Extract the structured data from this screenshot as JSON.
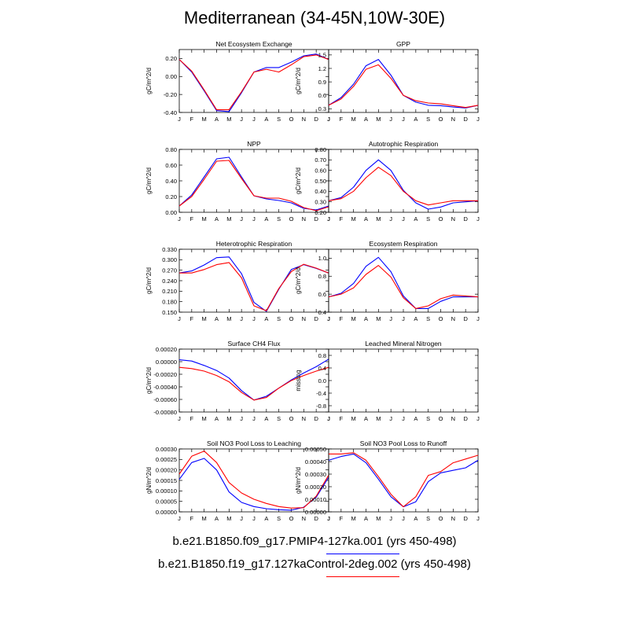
{
  "title": "Mediterranean (34-45N,10W-30E)",
  "colors": {
    "series1": "#0000ff",
    "series2": "#ff0000"
  },
  "legend": [
    {
      "label": "b.e21.B1850.f09_g17.PMIP4-127ka.001 (yrs 450-498)",
      "color": "#0000ff"
    },
    {
      "label": "b.e21.B1850.f19_g17.127kaControl-2deg.002 (yrs 450-498)",
      "color": "#ff0000"
    }
  ],
  "chart_data": [
    {
      "type": "line",
      "title": "Net Ecosystem Exchange",
      "ylabel": "gC/m^2/d",
      "categories": [
        "J",
        "F",
        "M",
        "A",
        "M",
        "J",
        "J",
        "A",
        "S",
        "O",
        "N",
        "D",
        "J"
      ],
      "ylim": [
        -0.4,
        0.3
      ],
      "yticks": [
        "0.20",
        "0.00",
        "-0.20",
        "-0.40"
      ],
      "ytick_values": [
        0.2,
        0.0,
        -0.2,
        -0.4
      ],
      "series": [
        {
          "values": [
            0.19,
            0.05,
            -0.16,
            -0.38,
            -0.39,
            -0.18,
            0.05,
            0.1,
            0.1,
            0.16,
            0.23,
            0.25,
            0.19
          ]
        },
        {
          "values": [
            0.19,
            0.06,
            -0.15,
            -0.37,
            -0.37,
            -0.17,
            0.05,
            0.08,
            0.05,
            0.13,
            0.22,
            0.24,
            0.19
          ]
        }
      ]
    },
    {
      "type": "line",
      "title": "GPP",
      "ylabel": "gC/m^2/d",
      "categories": [
        "J",
        "F",
        "M",
        "A",
        "M",
        "J",
        "J",
        "A",
        "S",
        "O",
        "N",
        "D",
        "J"
      ],
      "ylim": [
        0.22,
        1.62
      ],
      "yticks": [
        "1.5",
        "1.2",
        "0.9",
        "0.6",
        "0.3"
      ],
      "ytick_values": [
        1.5,
        1.2,
        0.9,
        0.6,
        0.3
      ],
      "series": [
        {
          "values": [
            0.38,
            0.55,
            0.85,
            1.26,
            1.4,
            1.05,
            0.6,
            0.45,
            0.38,
            0.37,
            0.34,
            0.32,
            0.38
          ]
        },
        {
          "values": [
            0.38,
            0.52,
            0.8,
            1.18,
            1.28,
            0.98,
            0.6,
            0.48,
            0.43,
            0.41,
            0.37,
            0.33,
            0.38
          ]
        }
      ]
    },
    {
      "type": "line",
      "title": "NPP",
      "ylabel": "gC/m^2/d",
      "categories": [
        "J",
        "F",
        "M",
        "A",
        "M",
        "J",
        "J",
        "A",
        "S",
        "O",
        "N",
        "D",
        "J"
      ],
      "ylim": [
        0.0,
        0.8
      ],
      "yticks": [
        "0.80",
        "0.60",
        "0.40",
        "0.20",
        "0.00"
      ],
      "ytick_values": [
        0.8,
        0.6,
        0.4,
        0.2,
        0.0
      ],
      "series": [
        {
          "values": [
            0.08,
            0.22,
            0.45,
            0.68,
            0.7,
            0.45,
            0.21,
            0.17,
            0.15,
            0.12,
            0.05,
            0.03,
            0.08
          ]
        },
        {
          "values": [
            0.08,
            0.2,
            0.42,
            0.65,
            0.66,
            0.43,
            0.21,
            0.18,
            0.18,
            0.14,
            0.06,
            0.02,
            0.07
          ]
        }
      ]
    },
    {
      "type": "line",
      "title": "Autotrophic Respiration",
      "ylabel": "gC/m^2/d",
      "categories": [
        "J",
        "F",
        "M",
        "A",
        "M",
        "J",
        "J",
        "A",
        "S",
        "O",
        "N",
        "D",
        "J"
      ],
      "ylim": [
        0.2,
        0.8
      ],
      "yticks": [
        "0.80",
        "0.70",
        "0.60",
        "0.50",
        "0.40",
        "0.30",
        "0.20"
      ],
      "ytick_values": [
        0.8,
        0.7,
        0.6,
        0.5,
        0.4,
        0.3,
        0.2
      ],
      "series": [
        {
          "values": [
            0.31,
            0.34,
            0.44,
            0.6,
            0.7,
            0.6,
            0.41,
            0.29,
            0.23,
            0.25,
            0.29,
            0.3,
            0.31
          ]
        },
        {
          "values": [
            0.31,
            0.33,
            0.4,
            0.53,
            0.63,
            0.55,
            0.4,
            0.31,
            0.27,
            0.29,
            0.31,
            0.31,
            0.31
          ]
        }
      ]
    },
    {
      "type": "line",
      "title": "Heterotrophic Respiration",
      "ylabel": "gC/m^2/d",
      "categories": [
        "J",
        "F",
        "M",
        "A",
        "M",
        "J",
        "J",
        "A",
        "S",
        "O",
        "N",
        "D",
        "J"
      ],
      "ylim": [
        0.15,
        0.33
      ],
      "yticks": [
        "0.330",
        "0.300",
        "0.270",
        "0.240",
        "0.210",
        "0.180",
        "0.150"
      ],
      "ytick_values": [
        0.33,
        0.3,
        0.27,
        0.24,
        0.21,
        0.18,
        0.15
      ],
      "series": [
        {
          "values": [
            0.262,
            0.268,
            0.285,
            0.306,
            0.308,
            0.26,
            0.178,
            0.152,
            0.216,
            0.272,
            0.286,
            0.275,
            0.262
          ]
        },
        {
          "values": [
            0.262,
            0.262,
            0.272,
            0.286,
            0.292,
            0.248,
            0.168,
            0.154,
            0.218,
            0.266,
            0.287,
            0.276,
            0.262
          ]
        }
      ]
    },
    {
      "type": "line",
      "title": "Ecosystem Respiration",
      "ylabel": "gC/m^2/d",
      "categories": [
        "J",
        "F",
        "M",
        "A",
        "M",
        "J",
        "J",
        "A",
        "S",
        "O",
        "N",
        "D",
        "J"
      ],
      "ylim": [
        0.4,
        1.1
      ],
      "yticks": [
        "1.0",
        "0.8",
        "0.6",
        "0.4"
      ],
      "ytick_values": [
        1.0,
        0.8,
        0.6,
        0.4
      ],
      "series": [
        {
          "values": [
            0.57,
            0.61,
            0.72,
            0.91,
            1.01,
            0.85,
            0.58,
            0.44,
            0.44,
            0.52,
            0.57,
            0.57,
            0.57
          ]
        },
        {
          "values": [
            0.57,
            0.6,
            0.67,
            0.82,
            0.92,
            0.79,
            0.56,
            0.44,
            0.47,
            0.55,
            0.59,
            0.58,
            0.57
          ]
        }
      ]
    },
    {
      "type": "line",
      "title": "Surface CH4 Flux",
      "ylabel": "gC/m^2/d",
      "categories": [
        "J",
        "F",
        "M",
        "A",
        "M",
        "J",
        "J",
        "A",
        "S",
        "O",
        "N",
        "D",
        "J"
      ],
      "ylim": [
        -0.0008,
        0.0002
      ],
      "yticks": [
        "0.00020",
        "0.00000",
        "-0.00020",
        "-0.00040",
        "-0.00060",
        "-0.00080"
      ],
      "ytick_values": [
        0.0002,
        0.0,
        -0.0002,
        -0.0004,
        -0.0006,
        -0.0008
      ],
      "series": [
        {
          "values": [
            3e-05,
            1e-05,
            -6e-05,
            -0.00014,
            -0.00026,
            -0.00046,
            -0.00061,
            -0.00055,
            -0.00042,
            -0.00029,
            -0.00018,
            -8e-05,
            4e-05
          ]
        },
        {
          "values": [
            -9e-05,
            -0.00011,
            -0.00015,
            -0.00022,
            -0.00032,
            -0.00049,
            -0.00061,
            -0.00057,
            -0.00042,
            -0.0003,
            -0.00022,
            -0.00015,
            -9e-05
          ]
        }
      ]
    },
    {
      "type": "line",
      "title": "Leached Mineral Nitrogen",
      "ylabel": "missing",
      "categories": [
        "J",
        "F",
        "M",
        "A",
        "M",
        "J",
        "J",
        "A",
        "S",
        "O",
        "N",
        "D",
        "J"
      ],
      "ylim": [
        -1.0,
        1.0
      ],
      "yticks": [
        "0.8",
        "0.4",
        "0.0",
        "-0.4",
        "-0.8"
      ],
      "ytick_values": [
        0.8,
        0.4,
        0.0,
        -0.4,
        -0.8
      ],
      "series": []
    },
    {
      "type": "line",
      "title": "Soil NO3 Pool Loss to Leaching",
      "ylabel": "gN/m^2/d",
      "categories": [
        "J",
        "F",
        "M",
        "A",
        "M",
        "J",
        "J",
        "A",
        "S",
        "O",
        "N",
        "D",
        "J"
      ],
      "ylim": [
        0.0,
        0.0003
      ],
      "yticks": [
        "0.00030",
        "0.00025",
        "0.00020",
        "0.00015",
        "0.00010",
        "0.00005",
        "0.00000"
      ],
      "ytick_values": [
        0.0003,
        0.00025,
        0.0002,
        0.00015,
        0.0001,
        5e-05,
        0.0
      ],
      "series": [
        {
          "values": [
            0.000155,
            0.000235,
            0.000255,
            0.0002,
            9.5e-05,
            4.5e-05,
            2.5e-05,
            1.5e-05,
            1e-05,
            8e-06,
            2.2e-05,
            7e-05,
            0.000165
          ]
        },
        {
          "values": [
            0.00018,
            0.000265,
            0.00029,
            0.000235,
            0.00014,
            9e-05,
            6e-05,
            4e-05,
            2.5e-05,
            1.8e-05,
            2e-05,
            7.5e-05,
            0.000175
          ]
        }
      ]
    },
    {
      "type": "line",
      "title": "Soil NO3 Pool Loss to Runoff",
      "ylabel": "gN/m^2/d",
      "categories": [
        "J",
        "F",
        "M",
        "A",
        "M",
        "J",
        "J",
        "A",
        "S",
        "O",
        "N",
        "D",
        "J"
      ],
      "ylim": [
        0.0,
        0.0005
      ],
      "yticks": [
        "0.00050",
        "0.00040",
        "0.00030",
        "0.00020",
        "0.00010",
        "0.00000"
      ],
      "ytick_values": [
        0.0005,
        0.0004,
        0.0003,
        0.0002,
        0.0001,
        0.0
      ],
      "series": [
        {
          "values": [
            0.00041,
            0.00044,
            0.00046,
            0.00039,
            0.00026,
            0.00012,
            4e-05,
            8e-05,
            0.00024,
            0.00031,
            0.00033,
            0.00035,
            0.00041
          ]
        },
        {
          "values": [
            0.00046,
            0.00046,
            0.00047,
            0.00041,
            0.00028,
            0.00014,
            4e-05,
            0.00012,
            0.00029,
            0.00032,
            0.00039,
            0.00042,
            0.00045
          ]
        }
      ]
    }
  ]
}
